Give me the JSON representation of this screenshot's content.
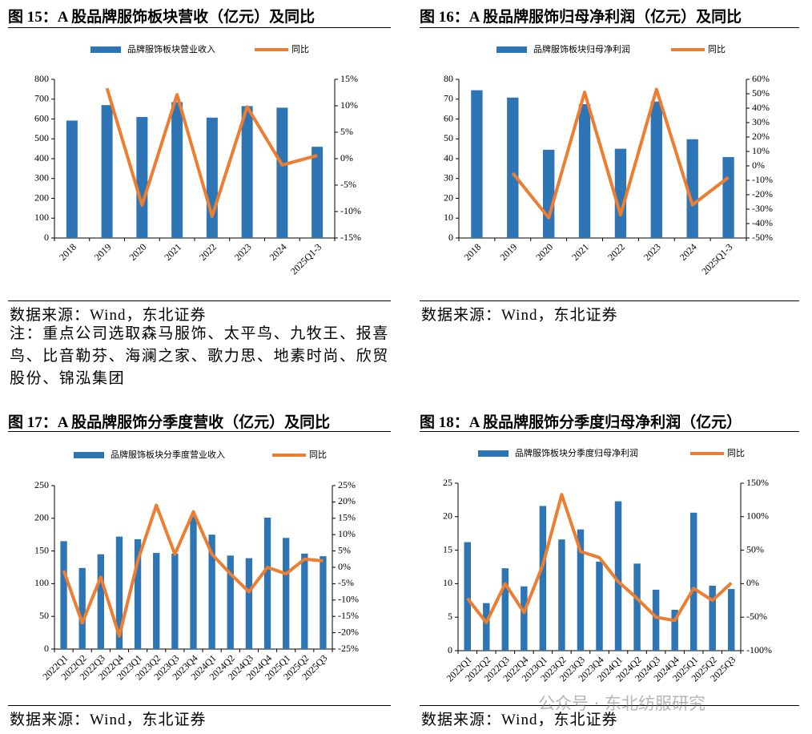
{
  "chart_data": [
    {
      "type": "bar",
      "title": "图 15：A 股品牌服饰板块营收（亿元）及同比",
      "categories": [
        "2018",
        "2019",
        "2020",
        "2021",
        "2022",
        "2023",
        "2024",
        "2025Q1-3"
      ],
      "series": [
        {
          "name": "品牌服饰板块营业收入",
          "type": "bar",
          "color": "#2e75b6",
          "values": [
            592,
            670,
            610,
            685,
            607,
            665,
            657,
            460
          ]
        },
        {
          "name": "同比",
          "type": "line",
          "axis": "y2",
          "color": "#ed7d31",
          "values": [
            null,
            13.3,
            -8.8,
            12.1,
            -10.9,
            9.8,
            -1.2,
            0.6
          ]
        }
      ],
      "ylim": [
        0,
        800
      ],
      "yticks": [
        0,
        100,
        200,
        300,
        400,
        500,
        600,
        700,
        800
      ],
      "y2lim": [
        -15,
        15
      ],
      "y2ticks": [
        {
          "value": -15,
          "label": "-15%"
        },
        {
          "value": -10,
          "label": "-10%"
        },
        {
          "value": -5,
          "label": "-5%"
        },
        {
          "value": 0,
          "label": "0%"
        },
        {
          "value": 5,
          "label": "5%"
        },
        {
          "value": 10,
          "label": "10%"
        },
        {
          "value": 15,
          "label": "15%"
        }
      ],
      "grid": false,
      "legend": "top"
    },
    {
      "type": "bar",
      "title": "图 16：A 股品牌服饰归母净利润（亿元）及同比",
      "categories": [
        "2018",
        "2019",
        "2020",
        "2021",
        "2022",
        "2023",
        "2024",
        "2025Q1-3"
      ],
      "series": [
        {
          "name": "品牌服饰板块归母净利润",
          "type": "bar",
          "color": "#2e75b6",
          "values": [
            74.5,
            70.8,
            44.5,
            67.5,
            45,
            68.8,
            49.8,
            40.8
          ]
        },
        {
          "name": "同比",
          "type": "line",
          "axis": "y2",
          "color": "#ed7d31",
          "values": [
            null,
            -5,
            -36,
            51,
            -34,
            53,
            -27,
            -8
          ]
        }
      ],
      "ylim": [
        0,
        80
      ],
      "yticks": [
        0,
        10,
        20,
        30,
        40,
        50,
        60,
        70,
        80
      ],
      "y2lim": [
        -50,
        60
      ],
      "y2ticks": [
        {
          "value": -50,
          "label": "-50%"
        },
        {
          "value": -40,
          "label": "-40%"
        },
        {
          "value": -30,
          "label": "-30%"
        },
        {
          "value": -20,
          "label": "-20%"
        },
        {
          "value": -10,
          "label": "-10%"
        },
        {
          "value": 0,
          "label": "0%"
        },
        {
          "value": 10,
          "label": "10%"
        },
        {
          "value": 20,
          "label": "20%"
        },
        {
          "value": 30,
          "label": "30%"
        },
        {
          "value": 40,
          "label": "40%"
        },
        {
          "value": 50,
          "label": "50%"
        },
        {
          "value": 60,
          "label": "60%"
        }
      ],
      "grid": false,
      "legend": "top"
    },
    {
      "type": "bar",
      "title": "图 17：A 股品牌服饰分季度营收（亿元）及同比",
      "categories": [
        "2022Q1",
        "2022Q2",
        "2022Q3",
        "2022Q4",
        "2023Q1",
        "2023Q2",
        "2023Q3",
        "2023Q4",
        "2024Q1",
        "2024Q2",
        "2024Q3",
        "2024Q4",
        "2025Q1",
        "2025Q2",
        "2025Q3"
      ],
      "series": [
        {
          "name": "品牌服饰板块分季度营业收入",
          "type": "bar",
          "color": "#2e75b6",
          "values": [
            165,
            124,
            145,
            172,
            168,
            147,
            146,
            203,
            175,
            143,
            139,
            201,
            170,
            146,
            142
          ]
        },
        {
          "name": "同比",
          "type": "line",
          "axis": "y2",
          "color": "#ed7d31",
          "values": [
            -1,
            -17,
            -3,
            -21,
            2,
            19,
            4,
            17,
            4,
            -2,
            -7.5,
            0,
            -2,
            2.5,
            2
          ]
        }
      ],
      "ylim": [
        0,
        250
      ],
      "yticks": [
        0,
        50,
        100,
        150,
        200,
        250
      ],
      "y2lim": [
        -25,
        25
      ],
      "y2ticks": [
        {
          "value": -25,
          "label": "-25%"
        },
        {
          "value": -20,
          "label": "-20%"
        },
        {
          "value": -15,
          "label": "-15%"
        },
        {
          "value": -10,
          "label": "-10%"
        },
        {
          "value": -5,
          "label": "-5%"
        },
        {
          "value": 0,
          "label": "0%"
        },
        {
          "value": 5,
          "label": "5%"
        },
        {
          "value": 10,
          "label": "10%"
        },
        {
          "value": 15,
          "label": "15%"
        },
        {
          "value": 20,
          "label": "20%"
        },
        {
          "value": 25,
          "label": "25%"
        }
      ],
      "grid": false,
      "legend": "top"
    },
    {
      "type": "bar",
      "title": "图 18：A 股品牌服饰分季度归母净利润（亿元）",
      "categories": [
        "2022Q1",
        "2022Q2",
        "2022Q3",
        "2022Q4",
        "2023Q1",
        "2023Q2",
        "2023Q3",
        "2023Q4",
        "2024Q1",
        "2024Q2",
        "2024Q3",
        "2024Q4",
        "2025Q1",
        "2025Q2",
        "2025Q3"
      ],
      "series": [
        {
          "name": "品牌服饰板块分季度归母净利润",
          "type": "bar",
          "color": "#2e75b6",
          "values": [
            16.2,
            7.1,
            12.3,
            9.6,
            21.6,
            16.6,
            18.1,
            13.3,
            22.3,
            13.0,
            9.1,
            6.1,
            20.6,
            9.7,
            9.2
          ]
        },
        {
          "name": "同比",
          "type": "line",
          "axis": "y2",
          "color": "#ed7d31",
          "values": [
            -22,
            -58,
            0,
            -43,
            28,
            133,
            48,
            39,
            3,
            -22,
            -50,
            -55,
            -7,
            -25,
            1
          ]
        }
      ],
      "ylim": [
        0,
        25
      ],
      "yticks": [
        0,
        5,
        10,
        15,
        20,
        25
      ],
      "y2lim": [
        -100,
        150
      ],
      "y2ticks": [
        {
          "value": -100,
          "label": "-100%"
        },
        {
          "value": -50,
          "label": "-50%"
        },
        {
          "value": 0,
          "label": "0%"
        },
        {
          "value": 50,
          "label": "50%"
        },
        {
          "value": 100,
          "label": "100%"
        },
        {
          "value": 150,
          "label": "150%"
        }
      ],
      "grid": false,
      "legend": "top"
    }
  ],
  "sources": [
    "数据来源：Wind，东北证券",
    "数据来源：Wind，东北证券",
    "数据来源：Wind，东北证券",
    "数据来源：Wind，东北证券"
  ],
  "note": "注：重点公司选取森马服饰、太平鸟、九牧王、报喜鸟、比音勒芬、海澜之家、歌力思、地素时尚、欣贸股份、锦泓集团",
  "watermark": "公众号 · 东北纺服研究"
}
